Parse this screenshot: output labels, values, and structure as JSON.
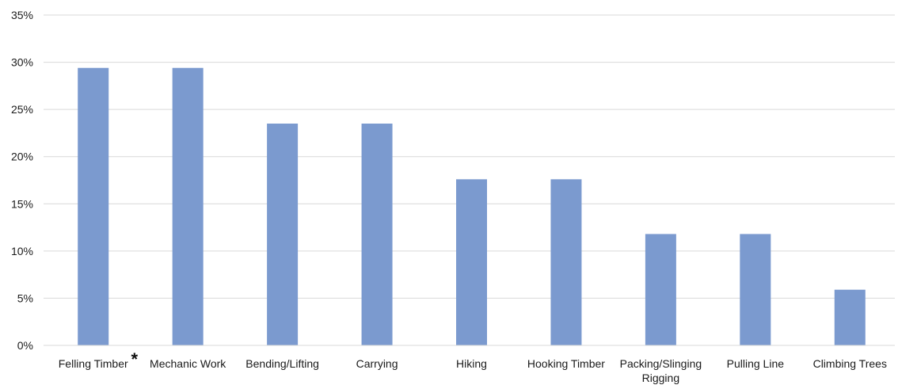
{
  "chart_data": {
    "type": "bar",
    "categories": [
      "Felling Timber",
      "Mechanic Work",
      "Bending/Lifting",
      "Carrying",
      "Hiking",
      "Hooking Timber",
      "Packing/Slinging Rigging",
      "Pulling Line",
      "Climbing Trees"
    ],
    "values": [
      29.4,
      29.4,
      23.5,
      23.5,
      17.6,
      17.6,
      11.8,
      11.8,
      5.9
    ],
    "ylim": [
      0,
      35
    ],
    "yticks": [
      0,
      5,
      10,
      15,
      20,
      25,
      30,
      35
    ],
    "ytick_labels": [
      "0%",
      "5%",
      "10%",
      "15%",
      "20%",
      "25%",
      "30%",
      "35%"
    ],
    "grid": true,
    "bar_color": "#7b9acf",
    "gridline_color": "#d9d9d9",
    "annotation": "*"
  }
}
